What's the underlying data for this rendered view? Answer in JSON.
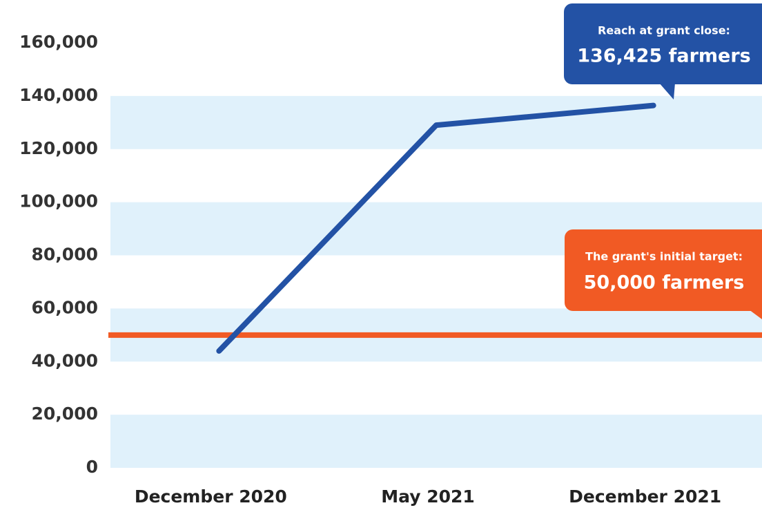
{
  "chart_data": {
    "type": "line",
    "categories": [
      "December 2020",
      "May 2021",
      "December 2021"
    ],
    "series": [
      {
        "name": "Reach",
        "color": "#2352a5",
        "values": [
          44000,
          129000,
          136425
        ]
      }
    ],
    "target": {
      "value": 50000,
      "color": "#f15a24"
    },
    "ylim": [
      0,
      160000
    ],
    "yticks": [
      {
        "value": 0,
        "label": "0"
      },
      {
        "value": 20000,
        "label": "20,000"
      },
      {
        "value": 40000,
        "label": "40,000"
      },
      {
        "value": 60000,
        "label": "60,000"
      },
      {
        "value": 80000,
        "label": "80,000"
      },
      {
        "value": 100000,
        "label": "100,000"
      },
      {
        "value": 120000,
        "label": "120,000"
      },
      {
        "value": 140000,
        "label": "140,000"
      },
      {
        "value": 160000,
        "label": "160,000"
      }
    ],
    "band_color": "#e0f1fb",
    "annotations": [
      {
        "title": "Reach at grant close:",
        "text": "136,425 farmers",
        "color": "#2352a5"
      },
      {
        "title": "The grant's initial target:",
        "text": "50,000 farmers",
        "color": "#f15a24"
      }
    ]
  }
}
